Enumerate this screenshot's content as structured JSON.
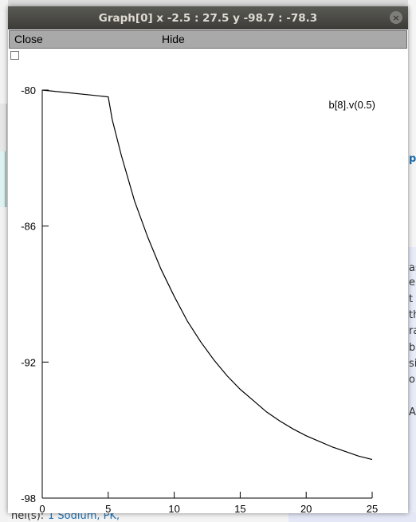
{
  "window": {
    "title": "Graph[0]  x -2.5 : 27.5  y -98.7 : -78.3",
    "close_glyph": "×"
  },
  "menu": {
    "close_label": "Close",
    "hide_label": "Hide"
  },
  "background_text": {
    "bottom_left": "nel(s):",
    "bottom_link": "1 Sodium, PK,",
    "right_edge": [
      "as",
      "er",
      "t",
      "th",
      "ra",
      "bo",
      "si",
      "o",
      "Ax"
    ],
    "right_top": "p"
  },
  "chart_data": {
    "type": "line",
    "title": "",
    "xlabel": "",
    "ylabel": "",
    "xlim": [
      0,
      25
    ],
    "ylim": [
      -98,
      -80
    ],
    "x_ticks": [
      0,
      5,
      10,
      15,
      20,
      25
    ],
    "y_ticks": [
      -80,
      -86,
      -92,
      -98
    ],
    "grid": false,
    "legend_position": "top-right",
    "series": [
      {
        "name": "b[8].v(0.5)",
        "color": "#000000",
        "x": [
          0,
          5,
          5.3,
          6,
          7,
          8,
          9,
          10,
          11,
          12,
          13,
          14,
          15,
          16,
          17,
          18,
          19,
          20,
          21,
          22,
          23,
          24,
          25
        ],
        "y": [
          -80.0,
          -80.3,
          -81.3,
          -82.9,
          -84.9,
          -86.5,
          -87.9,
          -89.1,
          -90.2,
          -91.1,
          -91.9,
          -92.6,
          -93.2,
          -93.7,
          -94.2,
          -94.6,
          -94.95,
          -95.25,
          -95.5,
          -95.75,
          -95.95,
          -96.15,
          -96.3
        ]
      }
    ]
  }
}
